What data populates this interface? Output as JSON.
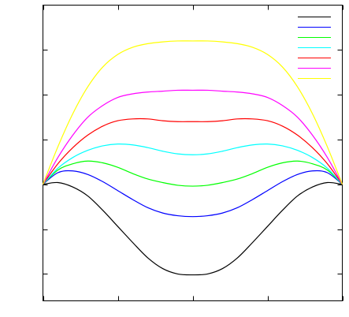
{
  "chart_data": {
    "type": "line",
    "title": "",
    "xlabel": "",
    "ylabel": "",
    "xlim": [
      0,
      1
    ],
    "ylim": [
      -1.3,
      2.0
    ],
    "grid": false,
    "legend": {
      "placement": "top-right",
      "labels_shown": false
    },
    "xticks": [
      0,
      0.25,
      0.5,
      0.75,
      1
    ],
    "yticks": [
      -1,
      -0.5,
      0,
      0.5,
      1,
      1.5
    ],
    "series": [
      {
        "color": "#000000",
        "x": [
          0,
          0.05,
          0.1,
          0.15,
          0.2,
          0.25,
          0.3,
          0.35,
          0.4,
          0.45,
          0.5,
          0.55,
          0.6,
          0.65,
          0.7,
          0.75,
          0.8,
          0.85,
          0.9,
          0.95,
          1
        ],
        "y": [
          0,
          0.02,
          -0.03,
          -0.13,
          -0.29,
          -0.47,
          -0.65,
          -0.82,
          -0.94,
          -1.0,
          -1.01,
          -1.0,
          -0.94,
          -0.82,
          -0.65,
          -0.47,
          -0.29,
          -0.13,
          -0.03,
          0.02,
          0
        ]
      },
      {
        "color": "#0000ff",
        "x": [
          0,
          0.05,
          0.1,
          0.15,
          0.2,
          0.25,
          0.3,
          0.35,
          0.4,
          0.45,
          0.5,
          0.55,
          0.6,
          0.65,
          0.7,
          0.75,
          0.8,
          0.85,
          0.9,
          0.95,
          1
        ],
        "y": [
          0,
          0.13,
          0.15,
          0.11,
          0.03,
          -0.07,
          -0.17,
          -0.26,
          -0.32,
          -0.35,
          -0.36,
          -0.35,
          -0.32,
          -0.26,
          -0.17,
          -0.07,
          0.03,
          0.11,
          0.15,
          0.13,
          0
        ]
      },
      {
        "color": "#00ff00",
        "x": [
          0,
          0.05,
          0.1,
          0.15,
          0.2,
          0.25,
          0.3,
          0.35,
          0.4,
          0.45,
          0.5,
          0.55,
          0.6,
          0.65,
          0.7,
          0.75,
          0.8,
          0.85,
          0.9,
          0.95,
          1
        ],
        "y": [
          0,
          0.16,
          0.23,
          0.26,
          0.24,
          0.19,
          0.12,
          0.06,
          0.02,
          -0.01,
          -0.02,
          -0.01,
          0.02,
          0.06,
          0.12,
          0.19,
          0.24,
          0.26,
          0.23,
          0.16,
          0
        ]
      },
      {
        "color": "#00ffff",
        "x": [
          0,
          0.05,
          0.1,
          0.15,
          0.2,
          0.25,
          0.3,
          0.35,
          0.4,
          0.45,
          0.5,
          0.55,
          0.6,
          0.65,
          0.7,
          0.75,
          0.8,
          0.85,
          0.9,
          0.95,
          1
        ],
        "y": [
          0,
          0.18,
          0.3,
          0.38,
          0.43,
          0.45,
          0.44,
          0.41,
          0.37,
          0.34,
          0.33,
          0.34,
          0.37,
          0.41,
          0.44,
          0.45,
          0.43,
          0.38,
          0.3,
          0.18,
          0
        ]
      },
      {
        "color": "#ff0000",
        "x": [
          0,
          0.05,
          0.1,
          0.15,
          0.2,
          0.25,
          0.3,
          0.35,
          0.4,
          0.45,
          0.5,
          0.55,
          0.6,
          0.65,
          0.7,
          0.75,
          0.8,
          0.85,
          0.9,
          0.95,
          1
        ],
        "y": [
          0,
          0.23,
          0.41,
          0.55,
          0.65,
          0.71,
          0.73,
          0.73,
          0.71,
          0.7,
          0.7,
          0.7,
          0.71,
          0.73,
          0.73,
          0.71,
          0.65,
          0.55,
          0.41,
          0.23,
          0
        ]
      },
      {
        "color": "#ff00ff",
        "x": [
          0,
          0.05,
          0.1,
          0.15,
          0.2,
          0.25,
          0.3,
          0.35,
          0.4,
          0.45,
          0.5,
          0.55,
          0.6,
          0.65,
          0.7,
          0.75,
          0.8,
          0.85,
          0.9,
          0.95,
          1
        ],
        "y": [
          0,
          0.3,
          0.55,
          0.75,
          0.88,
          0.97,
          1.01,
          1.03,
          1.04,
          1.05,
          1.05,
          1.05,
          1.04,
          1.03,
          1.01,
          0.97,
          0.88,
          0.75,
          0.55,
          0.3,
          0
        ]
      },
      {
        "color": "#ffff00",
        "x": [
          0,
          0.05,
          0.1,
          0.15,
          0.2,
          0.25,
          0.3,
          0.35,
          0.4,
          0.45,
          0.5,
          0.55,
          0.6,
          0.65,
          0.7,
          0.75,
          0.8,
          0.85,
          0.9,
          0.95,
          1
        ],
        "y": [
          0,
          0.42,
          0.79,
          1.09,
          1.31,
          1.45,
          1.53,
          1.57,
          1.59,
          1.6,
          1.6,
          1.6,
          1.59,
          1.57,
          1.53,
          1.45,
          1.31,
          1.09,
          0.79,
          0.42,
          0
        ]
      }
    ]
  }
}
